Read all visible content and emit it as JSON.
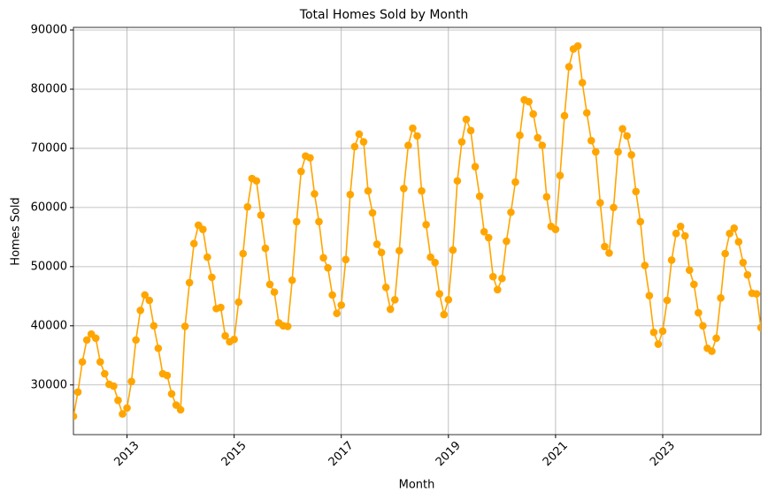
{
  "chart_data": {
    "type": "line",
    "title": "Total Homes Sold by Month",
    "xlabel": "Month",
    "ylabel": "Homes Sold",
    "x": [
      "2012-01",
      "2012-02",
      "2012-03",
      "2012-04",
      "2012-05",
      "2012-06",
      "2012-07",
      "2012-08",
      "2012-09",
      "2012-10",
      "2012-11",
      "2012-12",
      "2013-01",
      "2013-02",
      "2013-03",
      "2013-04",
      "2013-05",
      "2013-06",
      "2013-07",
      "2013-08",
      "2013-09",
      "2013-10",
      "2013-11",
      "2013-12",
      "2014-01",
      "2014-02",
      "2014-03",
      "2014-04",
      "2014-05",
      "2014-06",
      "2014-07",
      "2014-08",
      "2014-09",
      "2014-10",
      "2014-11",
      "2014-12",
      "2015-01",
      "2015-02",
      "2015-03",
      "2015-04",
      "2015-05",
      "2015-06",
      "2015-07",
      "2015-08",
      "2015-09",
      "2015-10",
      "2015-11",
      "2015-12",
      "2016-01",
      "2016-02",
      "2016-03",
      "2016-04",
      "2016-05",
      "2016-06",
      "2016-07",
      "2016-08",
      "2016-09",
      "2016-10",
      "2016-11",
      "2016-12",
      "2017-01",
      "2017-02",
      "2017-03",
      "2017-04",
      "2017-05",
      "2017-06",
      "2017-07",
      "2017-08",
      "2017-09",
      "2017-10",
      "2017-11",
      "2017-12",
      "2018-01",
      "2018-02",
      "2018-03",
      "2018-04",
      "2018-05",
      "2018-06",
      "2018-07",
      "2018-08",
      "2018-09",
      "2018-10",
      "2018-11",
      "2018-12",
      "2019-01",
      "2019-02",
      "2019-03",
      "2019-04",
      "2019-05",
      "2019-06",
      "2019-07",
      "2019-08",
      "2019-09",
      "2019-10",
      "2019-11",
      "2019-12",
      "2020-01",
      "2020-02",
      "2020-03",
      "2020-04",
      "2020-05",
      "2020-06",
      "2020-07",
      "2020-08",
      "2020-09",
      "2020-10",
      "2020-11",
      "2020-12",
      "2021-01",
      "2021-02",
      "2021-03",
      "2021-04",
      "2021-05",
      "2021-06",
      "2021-07",
      "2021-08",
      "2021-09",
      "2021-10",
      "2021-11",
      "2021-12",
      "2022-01",
      "2022-02",
      "2022-03",
      "2022-04",
      "2022-05",
      "2022-06",
      "2022-07",
      "2022-08",
      "2022-09",
      "2022-10",
      "2022-11",
      "2022-12",
      "2023-01",
      "2023-02",
      "2023-03",
      "2023-04",
      "2023-05",
      "2023-06",
      "2023-07",
      "2023-08",
      "2023-09",
      "2023-10",
      "2023-11",
      "2023-12",
      "2024-01",
      "2024-02",
      "2024-03",
      "2024-04",
      "2024-05",
      "2024-06",
      "2024-07",
      "2024-08",
      "2024-09",
      "2024-10",
      "2024-11"
    ],
    "series": [
      {
        "name": "Homes Sold",
        "color": "#ffa500",
        "values": [
          24700,
          28800,
          33900,
          37600,
          38600,
          37900,
          33900,
          31900,
          30100,
          29800,
          27400,
          25100,
          26100,
          30600,
          37600,
          42600,
          45200,
          44300,
          40000,
          36200,
          31900,
          31600,
          28500,
          26600,
          25800,
          39900,
          47300,
          53900,
          57000,
          56300,
          51600,
          48200,
          42900,
          43100,
          38300,
          37300,
          37700,
          44000,
          52200,
          60100,
          64900,
          64500,
          58700,
          53100,
          47000,
          45700,
          40500,
          40000,
          39900,
          47700,
          57600,
          66100,
          68700,
          68400,
          62300,
          57600,
          51500,
          49800,
          45200,
          42100,
          43500,
          51200,
          62200,
          70300,
          72400,
          71100,
          62800,
          59100,
          53800,
          52400,
          46500,
          42800,
          44400,
          52700,
          63200,
          70500,
          73400,
          72100,
          62800,
          57100,
          51600,
          50700,
          45400,
          41900,
          44400,
          52800,
          64500,
          71100,
          74900,
          73000,
          66900,
          61900,
          55900,
          54900,
          48300,
          46100,
          48000,
          54300,
          59200,
          64300,
          72200,
          78200,
          77900,
          75800,
          71800,
          70500,
          61800,
          56800,
          56300,
          65400,
          75500,
          83800,
          86800,
          87300,
          81100,
          76000,
          71300,
          69400,
          60800,
          53400,
          52300,
          60000,
          69400,
          73300,
          72100,
          68900,
          62700,
          57600,
          50200,
          45100,
          38900,
          36900,
          39100,
          44300,
          51100,
          55600,
          56800,
          55200,
          49400,
          47000,
          42200,
          40000,
          36200,
          35700,
          37900,
          44700,
          52200,
          55600,
          56500,
          54200,
          50700,
          48600,
          45500,
          45400,
          39700
        ]
      }
    ],
    "xlim": [
      "2012-01",
      "2024-11"
    ],
    "xticks": [
      {
        "value": "2013-01",
        "label": "2013"
      },
      {
        "value": "2015-01",
        "label": "2015"
      },
      {
        "value": "2017-01",
        "label": "2017"
      },
      {
        "value": "2019-01",
        "label": "2019"
      },
      {
        "value": "2021-01",
        "label": "2021"
      },
      {
        "value": "2023-01",
        "label": "2023"
      }
    ],
    "ylim": [
      21600,
      90450
    ],
    "yticks": [
      30000,
      40000,
      50000,
      60000,
      70000,
      80000,
      90000
    ],
    "grid": true
  }
}
